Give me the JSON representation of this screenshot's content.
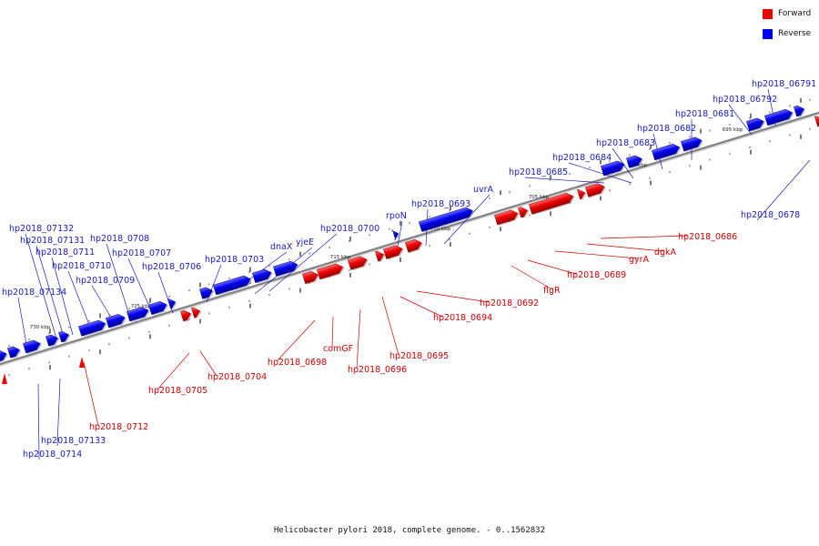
{
  "caption": "Helicobacter pylori 2018, complete genome. - 0..1562832",
  "legend": [
    {
      "label": "Forward",
      "color": "#ee0000"
    },
    {
      "label": "Reverse",
      "color": "#0000ee"
    }
  ],
  "colors": {
    "forward": "#ee0000",
    "reverse": "#0000ee",
    "backbone": "#808080",
    "label_forward": "#cc0000",
    "label_reverse": "#1a1ab8"
  },
  "scale_labels": [
    "695 kbp",
    "700 kbp",
    "705 kbp",
    "710 kbp",
    "715 kbp",
    "720 kbp",
    "725 kbp",
    "730 kbp"
  ],
  "reverse_genes": [
    "hp2018_06791",
    "hp2018_06792",
    "hp2018_0681",
    "hp2018_0682",
    "hp2018_0683",
    "hp2018_0684",
    "hp2018_0685",
    "hp2018_0678",
    "hp2018_0693",
    "uvrA",
    "rpoN",
    "hp2018_0700",
    "yjeE",
    "dnaX",
    "hp2018_0703",
    "hp2018_0706",
    "hp2018_0707",
    "hp2018_0708",
    "hp2018_0709",
    "hp2018_0710",
    "hp2018_0711",
    "hp2018_07131",
    "hp2018_07132",
    "hp2018_07134",
    "hp2018_07133",
    "hp2018_0714"
  ],
  "forward_genes": [
    "hp2018_0686",
    "dgkA",
    "gyrA",
    "hp2018_0689",
    "flgR",
    "hp2018_0692",
    "hp2018_0694",
    "hp2018_0695",
    "hp2018_0696",
    "comGF",
    "hp2018_0698",
    "hp2018_0704",
    "hp2018_0705",
    "hp2018_0712"
  ]
}
